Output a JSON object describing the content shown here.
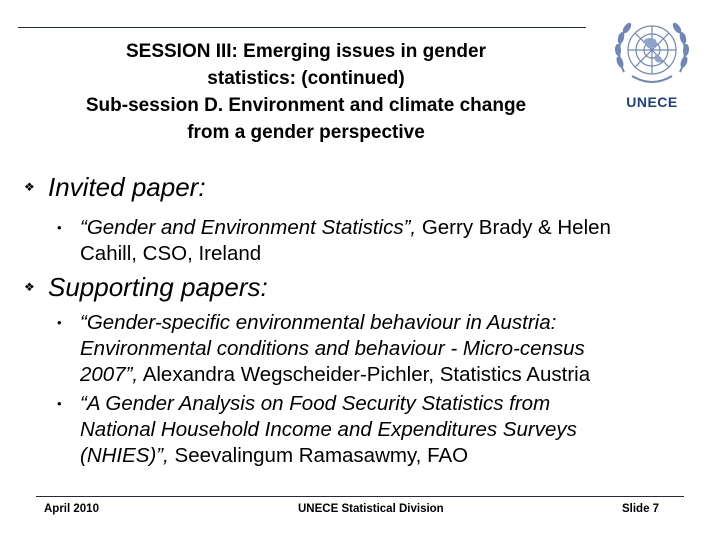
{
  "slide": {
    "title_lines": [
      "SESSION III: Emerging issues in gender",
      "statistics: (continued)",
      "Sub-session D. Environment and climate change",
      "from a gender perspective"
    ],
    "logo_text": "UNECE",
    "bullet_glyph": "❖",
    "sub_bullet_glyph": "•",
    "sections": [
      {
        "heading": "Invited paper:",
        "items": [
          {
            "lines": [
              [
                "“Gender and Environment Statistics”,",
                " Gerry Brady & Helen"
              ],
              [
                "",
                "Cahill, CSO, Ireland"
              ]
            ]
          }
        ]
      },
      {
        "heading": "Supporting papers:",
        "items": [
          {
            "lines": [
              [
                "“Gender-specific environmental behaviour in Austria:",
                ""
              ],
              [
                "Environmental conditions and behaviour - Micro-census",
                ""
              ],
              [
                "2007”,",
                " Alexandra Wegscheider-Pichler, Statistics Austria"
              ]
            ]
          },
          {
            "lines": [
              [
                " “A Gender Analysis on Food Security Statistics from",
                ""
              ],
              [
                "National Household Income and Expenditures Surveys",
                ""
              ],
              [
                "(NHIES)”,",
                " Seevalingum Ramasawmy, FAO"
              ]
            ]
          }
        ]
      }
    ],
    "footer": {
      "date": "April 2010",
      "division": "UNECE Statistical Division",
      "slide": "Slide 7"
    },
    "colors": {
      "rule": "#1f2a44",
      "logo": "#1f3e8a"
    }
  }
}
